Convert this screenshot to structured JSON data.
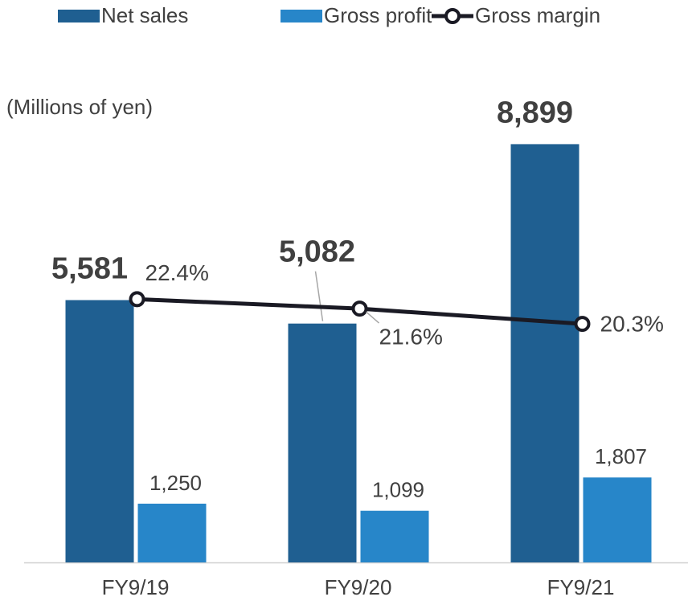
{
  "chart_data": {
    "type": "bar-line",
    "y_label": "(Millions of yen)",
    "categories": [
      "FY9/19",
      "FY9/20",
      "FY9/21"
    ],
    "series": [
      {
        "name": "Net sales",
        "type": "bar",
        "color": "#1f5f91",
        "values": [
          5581,
          5082,
          8899
        ],
        "value_labels": [
          "5,581",
          "5,082",
          "8,899"
        ]
      },
      {
        "name": "Gross profit",
        "type": "bar",
        "color": "#2786c9",
        "values": [
          1250,
          1099,
          1807
        ],
        "value_labels": [
          "1,250",
          "1,099",
          "1,807"
        ]
      },
      {
        "name": "Gross margin",
        "type": "line",
        "axis": "y2",
        "color": "#1a1a24",
        "values": [
          22.4,
          21.6,
          20.3
        ],
        "value_labels": [
          "22.4%",
          "21.6%",
          "20.3%"
        ]
      }
    ],
    "ylim": [
      0,
      10000
    ],
    "y2lim": [
      0,
      40
    ],
    "legend": "top"
  }
}
